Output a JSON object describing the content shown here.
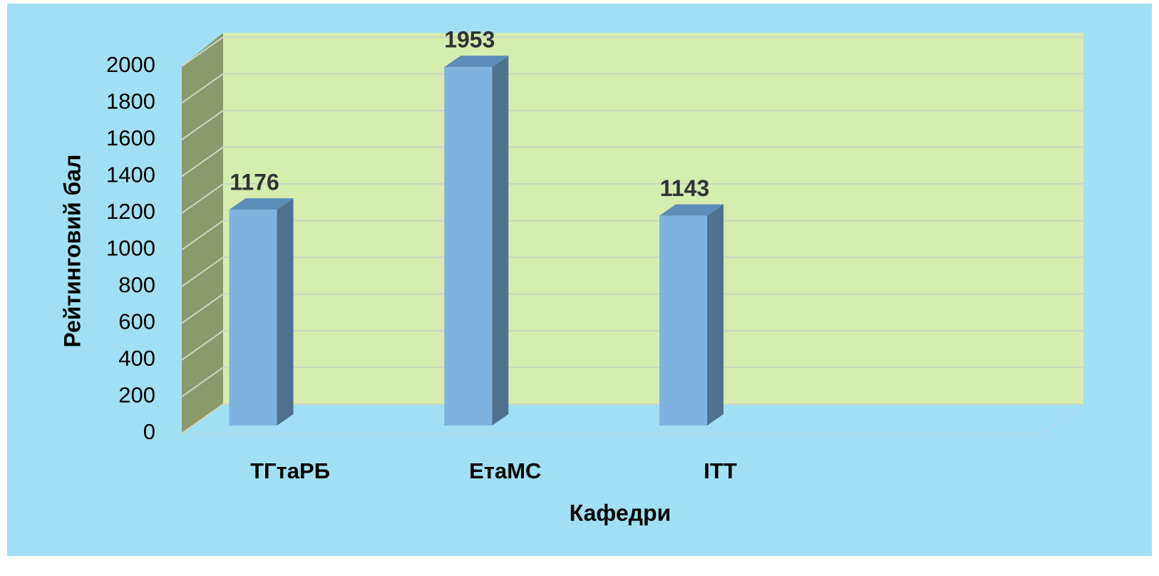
{
  "chart_data": {
    "type": "bar3d",
    "x_label": "Кафедри",
    "y_label": "Рейтинговий бал",
    "categories": [
      "ТГтаРБ",
      "ЕтаМС",
      "ІТТ",
      null
    ],
    "values": [
      1176,
      1953,
      1143,
      null
    ],
    "color": "#7fb3e0",
    "ylim": [
      0,
      2000
    ],
    "yticks": [
      0,
      200,
      400,
      600,
      800,
      1000,
      1200,
      1400,
      1600,
      1800,
      2000
    ],
    "grid": true
  }
}
